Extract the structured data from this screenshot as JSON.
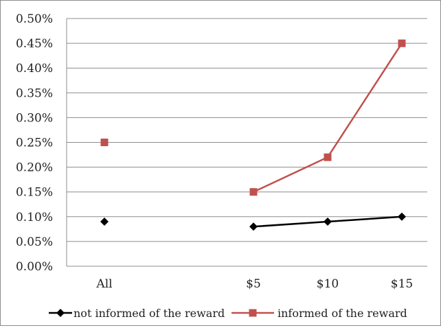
{
  "chart_data": {
    "type": "line",
    "categories": [
      "All",
      "",
      "$5",
      "$10",
      "$15"
    ],
    "ylim": [
      0,
      0.5
    ],
    "yticks": [
      "0.00%",
      "0.05%",
      "0.10%",
      "0.15%",
      "0.20%",
      "0.25%",
      "0.30%",
      "0.35%",
      "0.40%",
      "0.45%",
      "0.50%"
    ],
    "grid": true,
    "legend_position": "bottom",
    "series": [
      {
        "name": "not informed of the reward",
        "color": "#000000",
        "marker": "diamond",
        "values": [
          0.09,
          null,
          0.08,
          0.09,
          0.1
        ]
      },
      {
        "name": "informed of the reward",
        "color": "#c0504d",
        "marker": "square",
        "values": [
          0.25,
          null,
          0.15,
          0.22,
          0.45
        ]
      }
    ]
  }
}
